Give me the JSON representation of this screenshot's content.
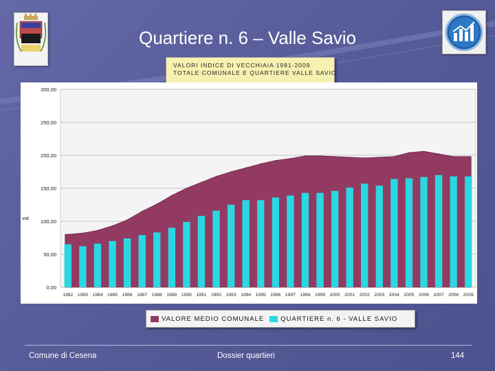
{
  "slide": {
    "title": "Quartiere n. 6 – Valle Savio",
    "footer_left": "Comune di Cesena",
    "footer_center": "Dossier quartieri",
    "page_number": "144",
    "colors": {
      "background": "#5a5e9c",
      "series_area": "#933a63",
      "series_bars": "#29d8e0"
    }
  },
  "chart_data": {
    "type": "bar",
    "title_lines": [
      "VALORI INDICE DI VECCHIAIA 1981-2009",
      "TOTALE COMUNALE E QUARTIERE VALLE SAVIO"
    ],
    "ylabel": "val.",
    "ylim": [
      0,
      300
    ],
    "yticks": [
      "0,00",
      "50,00",
      "100,00",
      "150,00",
      "200,00",
      "250,00",
      "300,00"
    ],
    "categories": [
      "1982",
      "1983",
      "1984",
      "1985",
      "1986",
      "1987",
      "1988",
      "1989",
      "1990",
      "1991",
      "1992",
      "1993",
      "1994",
      "1995",
      "1996",
      "1997",
      "1998",
      "1999",
      "2000",
      "2001",
      "2002",
      "2003",
      "2004",
      "2005",
      "2006",
      "2007",
      "2008",
      "2009"
    ],
    "series": [
      {
        "name": "VALORE MEDIO COMUNALE",
        "render": "area",
        "values": [
          80,
          82,
          86,
          93,
          102,
          115,
          126,
          139,
          150,
          159,
          168,
          175,
          181,
          187,
          192,
          195,
          199,
          199,
          198,
          197,
          196,
          197,
          198,
          204,
          206,
          202,
          198,
          198
        ]
      },
      {
        "name": "QUARTIERE n. 6 - VALLE SAVIO",
        "render": "bar",
        "values": [
          65,
          62,
          66,
          70,
          74,
          79,
          83,
          90,
          99,
          108,
          116,
          125,
          132,
          132,
          136,
          139,
          143,
          143,
          146,
          151,
          157,
          154,
          164,
          165,
          167,
          170,
          168,
          168
        ]
      }
    ],
    "grid": true,
    "legend": "bottom"
  }
}
